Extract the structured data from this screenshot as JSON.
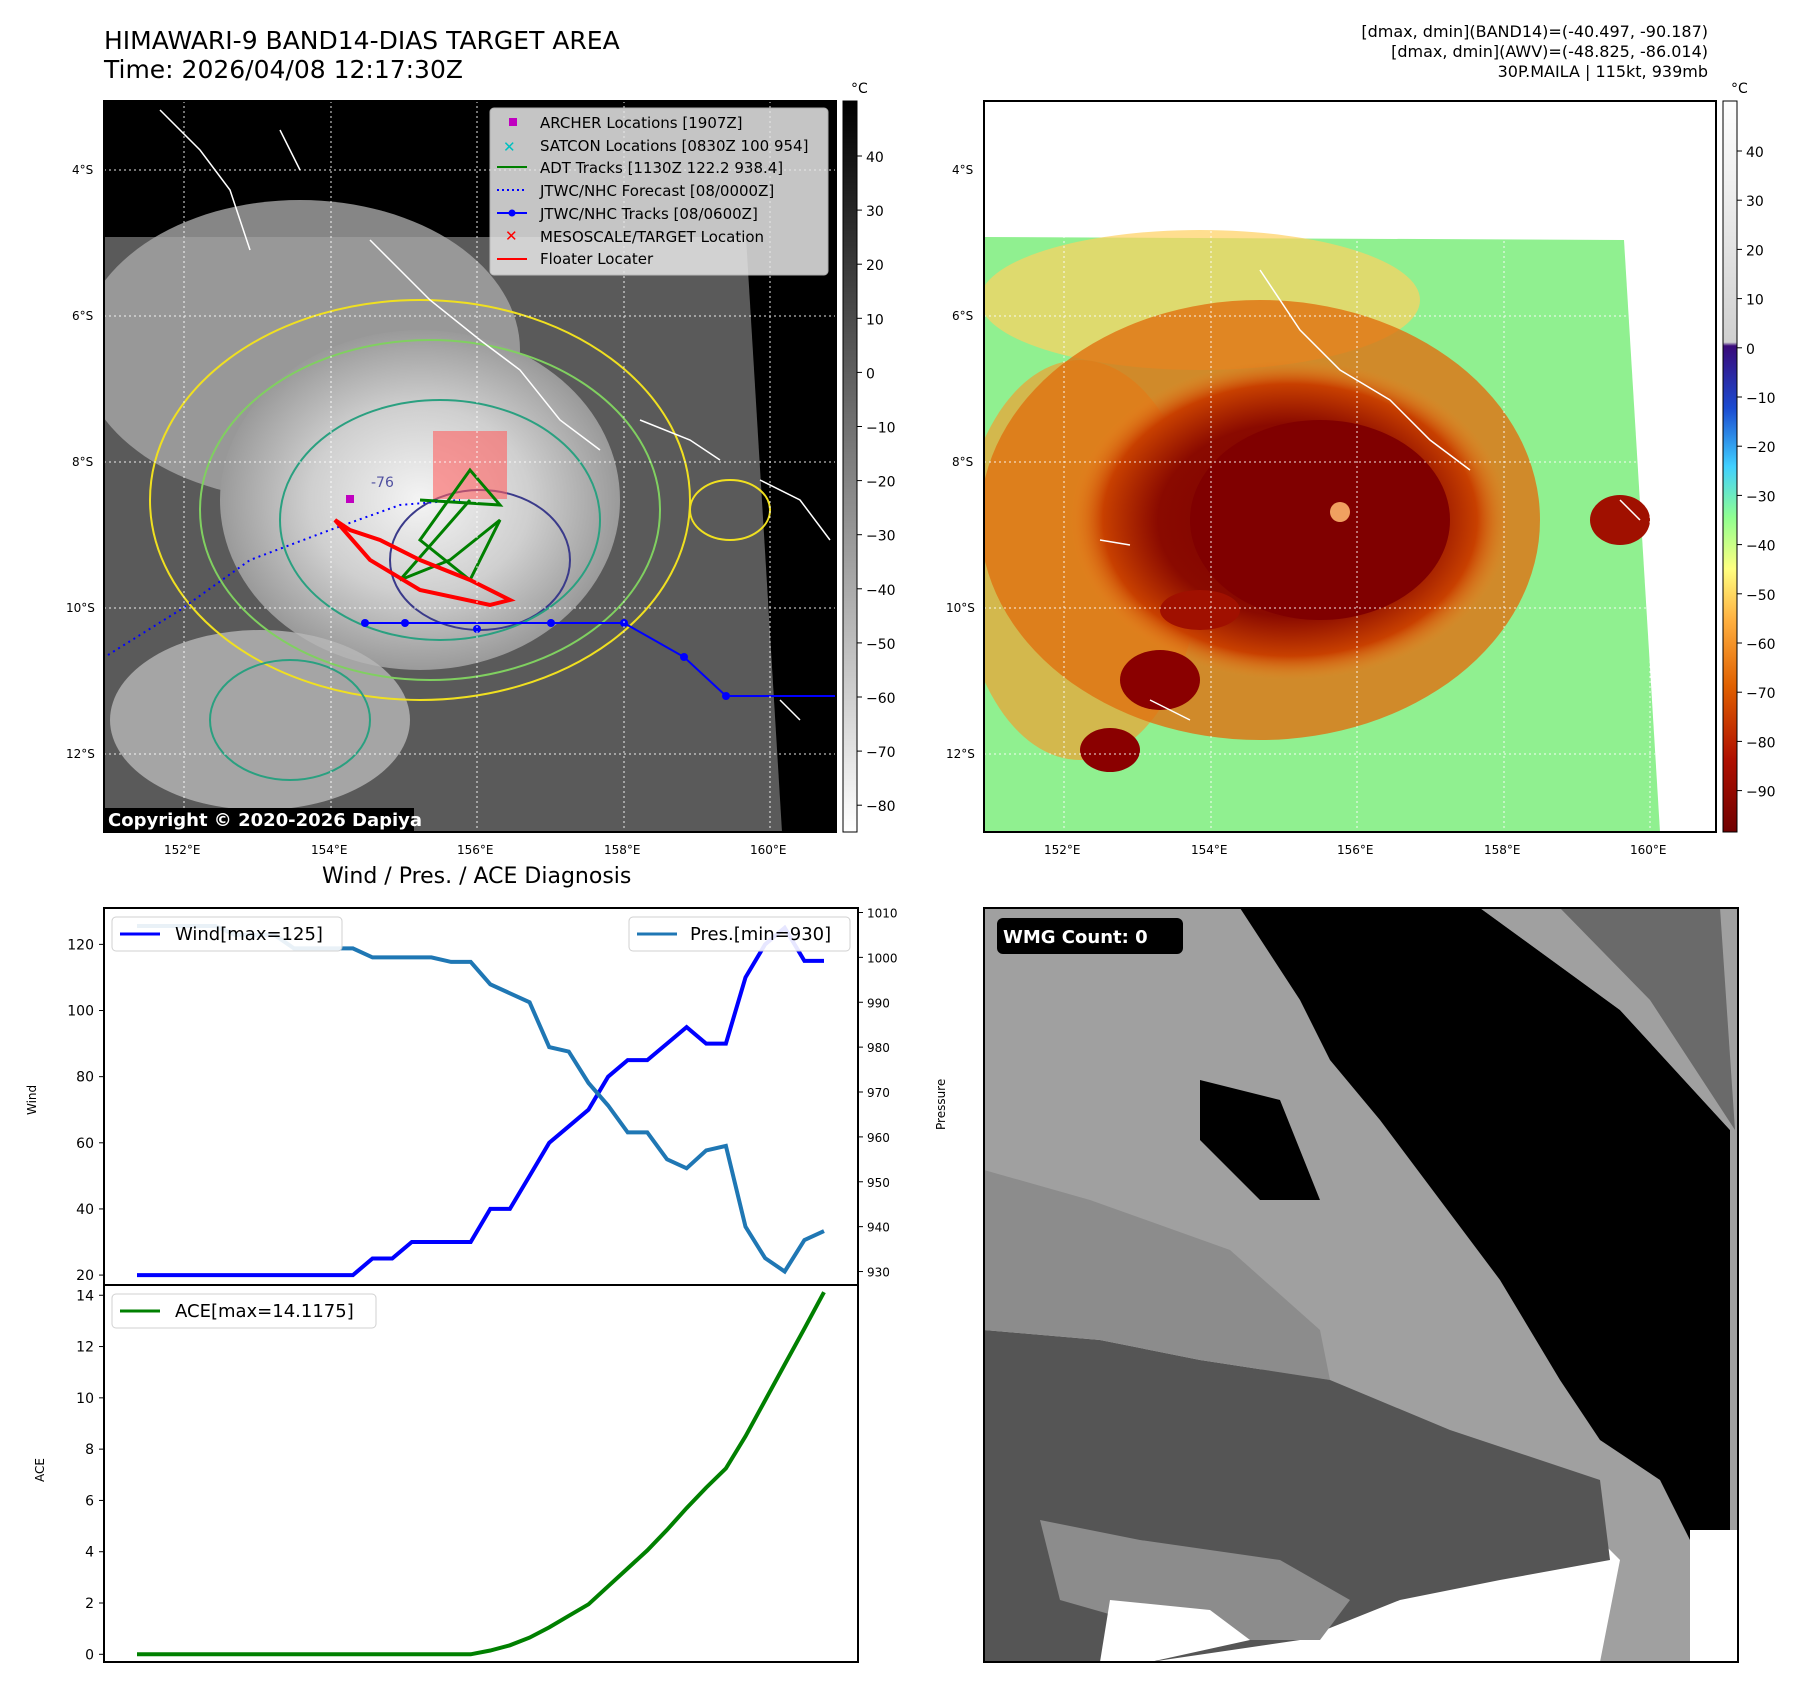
{
  "header": {
    "title_line1": "HIMAWARI-9 BAND14-DIAS TARGET AREA",
    "title_line2": "Time: 2026/04/08 12:17:30Z",
    "stats_line1": "[dmax, dmin](BAND14)=(-40.497, -90.187)",
    "stats_line2": "[dmax, dmin](AWV)=(-48.825, -86.014)",
    "stats_line3": "30P.MAILA | 115kt, 939mb"
  },
  "ir_panel": {
    "colorbar_unit": "°C",
    "colorbar_ticks": [
      "40",
      "30",
      "20",
      "10",
      "0",
      "−10",
      "−20",
      "−30",
      "−40",
      "−50",
      "−60",
      "−70",
      "−80"
    ],
    "lat_labels": [
      "4°S",
      "6°S",
      "8°S",
      "10°S",
      "12°S"
    ],
    "lon_labels": [
      "152°E",
      "154°E",
      "156°E",
      "158°E",
      "160°E"
    ],
    "copyright": "Copyright © 2020-2026 Dapiya",
    "contour_label": "-76",
    "legend": [
      {
        "label": "ARCHER Locations [1907Z]",
        "color": "#c000c0",
        "marker": "square"
      },
      {
        "label": "SATCON Locations [0830Z 100 954]",
        "color": "#00c0c0",
        "marker": "x"
      },
      {
        "label": "ADT Tracks [1130Z 122.2 938.4]",
        "color": "#008000",
        "marker": "line"
      },
      {
        "label": "JTWC/NHC Forecast [08/0000Z]",
        "color": "#0000ff",
        "marker": "dotted"
      },
      {
        "label": "JTWC/NHC Tracks [08/0600Z]",
        "color": "#0000ff",
        "marker": "line-dot"
      },
      {
        "label": "MESOSCALE/TARGET Location",
        "color": "#ff0000",
        "marker": "x-bold"
      },
      {
        "label": "Floater Locater",
        "color": "#ff0000",
        "marker": "line"
      }
    ]
  },
  "awv_panel": {
    "colorbar_unit": "°C",
    "colorbar_ticks": [
      "40",
      "30",
      "20",
      "10",
      "0",
      "−10",
      "−20",
      "−30",
      "−40",
      "−50",
      "−60",
      "−70",
      "−80",
      "−90"
    ],
    "lat_labels": [
      "4°S",
      "6°S",
      "8°S",
      "10°S",
      "12°S"
    ],
    "lon_labels": [
      "152°E",
      "154°E",
      "156°E",
      "158°E",
      "160°E"
    ]
  },
  "wmg_panel": {
    "label": "WMG Count: 0"
  },
  "chart_data": [
    {
      "type": "line",
      "title": "Wind / Pres. / ACE Diagnosis",
      "ylabel": "Wind",
      "ylabel_right": "Pressure",
      "ylim": [
        17,
        131
      ],
      "ylim_right": [
        927,
        1011
      ],
      "yticks": [
        20,
        40,
        60,
        80,
        100,
        120
      ],
      "yticks_right": [
        930,
        940,
        950,
        960,
        970,
        980,
        990,
        1000,
        1010
      ],
      "series": [
        {
          "name": "Wind[max=125]",
          "color": "#0000ff",
          "axis": "left",
          "values": [
            20,
            20,
            20,
            20,
            20,
            20,
            20,
            20,
            20,
            20,
            20,
            20,
            25,
            25,
            30,
            30,
            30,
            30,
            40,
            40,
            50,
            60,
            65,
            70,
            80,
            85,
            85,
            90,
            95,
            90,
            90,
            110,
            120,
            125,
            115,
            115
          ]
        },
        {
          "name": "Pres.[min=930]",
          "color": "#1f77b4",
          "axis": "right",
          "values": [
            1007,
            1007,
            1007,
            1007,
            1007,
            1005,
            1005,
            1005,
            1002,
            1002,
            1002,
            1002,
            1000,
            1000,
            1000,
            1000,
            999,
            999,
            994,
            992,
            990,
            980,
            979,
            972,
            967,
            961,
            961,
            955,
            953,
            957,
            958,
            940,
            933,
            930,
            937,
            939
          ]
        }
      ]
    },
    {
      "type": "line",
      "ylabel": "ACE",
      "ylim": [
        -0.3,
        14.4
      ],
      "yticks": [
        0,
        2,
        4,
        6,
        8,
        10,
        12,
        14
      ],
      "series": [
        {
          "name": "ACE[max=14.1175]",
          "color": "#008000",
          "values": [
            0,
            0,
            0,
            0,
            0,
            0,
            0,
            0,
            0,
            0,
            0,
            0,
            0,
            0,
            0,
            0,
            0,
            0,
            0.15,
            0.35,
            0.65,
            1.05,
            1.5,
            1.95,
            2.65,
            3.35,
            4.05,
            4.85,
            5.7,
            6.5,
            7.25,
            8.5,
            9.9,
            11.3,
            12.7,
            14.1175
          ]
        }
      ]
    }
  ]
}
